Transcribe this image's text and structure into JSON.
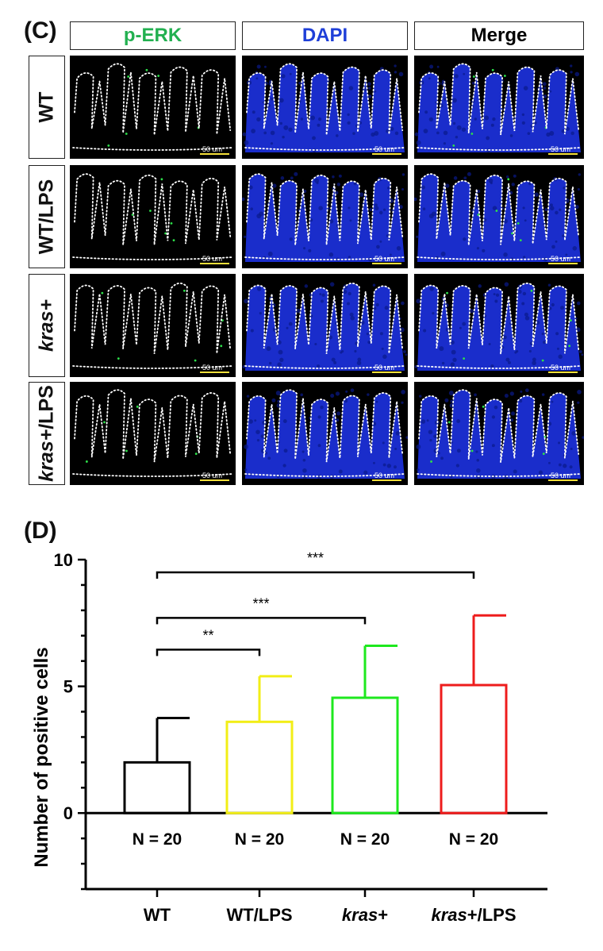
{
  "panel_c": {
    "label": "(C)",
    "columns": [
      {
        "label": "p-ERK",
        "color": "#22b050",
        "stain": "perk"
      },
      {
        "label": "DAPI",
        "color": "#1f3fd8",
        "stain": "dapi"
      },
      {
        "label": "Merge",
        "color": "#000000",
        "stain": "merge"
      }
    ],
    "rows": [
      {
        "label_parts": [
          {
            "text": "WT",
            "italic": false
          }
        ]
      },
      {
        "label_parts": [
          {
            "text": "WT/LPS",
            "italic": false
          }
        ]
      },
      {
        "label_parts": [
          {
            "text": "kras+",
            "italic": true
          }
        ]
      },
      {
        "label_parts": [
          {
            "text": "kras+",
            "italic": true
          },
          {
            "text": "/LPS",
            "italic": false
          }
        ]
      }
    ],
    "scale_bar_labels": [
      [
        "50 um",
        "50 um",
        "50 um"
      ],
      [
        "50 um",
        "50 um",
        "50 um"
      ],
      [
        "50 um",
        "50 um",
        "50 um"
      ],
      [
        "50 um",
        "50 um",
        "50 um"
      ]
    ],
    "scale_bar_color": "#f5e03a"
  },
  "panel_d": {
    "label": "(D)"
  },
  "chart_data": {
    "type": "bar",
    "title": "",
    "xlabel": "",
    "ylabel": "Number of positive cells",
    "ylim": [
      -3,
      10
    ],
    "yticks": [
      0,
      5,
      10
    ],
    "categories": [
      {
        "parts": [
          {
            "text": "WT",
            "italic": false
          }
        ]
      },
      {
        "parts": [
          {
            "text": "WT/LPS",
            "italic": false
          }
        ]
      },
      {
        "parts": [
          {
            "text": "kras",
            "italic": true
          },
          {
            "text": "+",
            "italic": false
          }
        ]
      },
      {
        "parts": [
          {
            "text": "kras",
            "italic": true
          },
          {
            "text": "+/LPS",
            "italic": false
          }
        ]
      }
    ],
    "values": [
      2.0,
      3.6,
      4.55,
      5.05
    ],
    "errors_upper": [
      3.75,
      5.4,
      6.6,
      7.8
    ],
    "colors": [
      "#000000",
      "#f2ee16",
      "#1ee81e",
      "#ee1c1c"
    ],
    "n_labels": [
      "N = 20",
      "N = 20",
      "N = 20",
      "N = 20"
    ],
    "significance": [
      {
        "from": 0,
        "to": 1,
        "label": "**",
        "y": 6.45
      },
      {
        "from": 0,
        "to": 2,
        "label": "***",
        "y": 7.7
      },
      {
        "from": 0,
        "to": 3,
        "label": "***",
        "y": 9.5
      }
    ],
    "grid": false,
    "legend": "none"
  }
}
